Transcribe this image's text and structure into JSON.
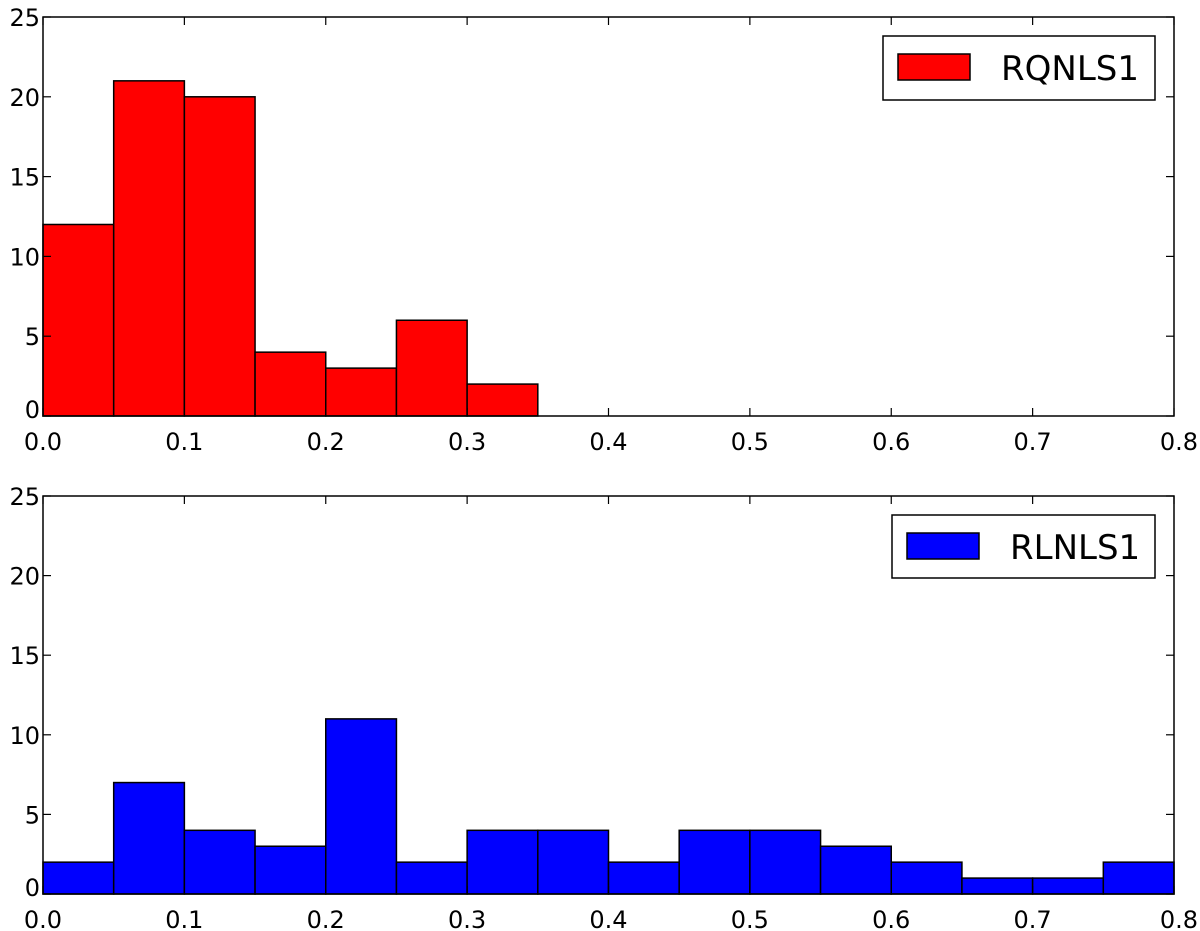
{
  "chart_data": [
    {
      "type": "bar",
      "legend": "RQNLS1",
      "legend_position": "top-right",
      "color": "#ff0000",
      "bin_edges": [
        0.0,
        0.05,
        0.1,
        0.15,
        0.2,
        0.25,
        0.3,
        0.35
      ],
      "values": [
        12,
        21,
        20,
        4,
        3,
        6,
        2
      ],
      "xlim": [
        0.0,
        0.8
      ],
      "ylim": [
        0,
        25
      ],
      "xticks": [
        "0.0",
        "0.1",
        "0.2",
        "0.3",
        "0.4",
        "0.5",
        "0.6",
        "0.7",
        "0.8"
      ],
      "yticks": [
        "0",
        "5",
        "10",
        "15",
        "20",
        "25"
      ],
      "grid": false
    },
    {
      "type": "bar",
      "legend": "RLNLS1",
      "legend_position": "top-right",
      "color": "#0000ff",
      "bin_edges": [
        0.0,
        0.05,
        0.1,
        0.15,
        0.2,
        0.25,
        0.3,
        0.35,
        0.4,
        0.45,
        0.5,
        0.55,
        0.6,
        0.65,
        0.7,
        0.75,
        0.8
      ],
      "values": [
        2,
        7,
        4,
        3,
        11,
        2,
        4,
        4,
        2,
        4,
        4,
        3,
        2,
        1,
        1,
        2
      ],
      "xlim": [
        0.0,
        0.8
      ],
      "ylim": [
        0,
        25
      ],
      "xticks": [
        "0.0",
        "0.1",
        "0.2",
        "0.3",
        "0.4",
        "0.5",
        "0.6",
        "0.7",
        "0.8"
      ],
      "yticks": [
        "0",
        "5",
        "10",
        "15",
        "20",
        "25"
      ],
      "grid": false
    }
  ]
}
